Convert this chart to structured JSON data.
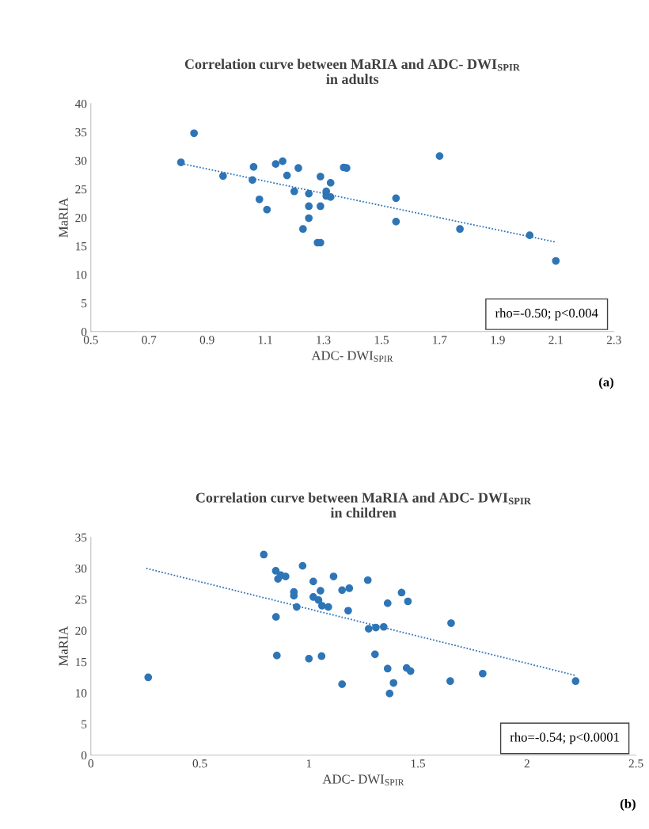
{
  "chart_data": [
    {
      "type": "scatter",
      "title": "Correlation curve between MaRIA and ADC- DWI$_{SPIR}$\nin adults",
      "xlabel": "ADC- DWI$_{SPIR}$",
      "ylabel": "MaRIA",
      "xlim": [
        0.5,
        2.3
      ],
      "xticks": [
        0.5,
        0.7,
        0.9,
        1.1,
        1.3,
        1.5,
        1.7,
        1.9,
        2.1,
        2.3
      ],
      "ylim": [
        0,
        40
      ],
      "yticks": [
        0,
        5,
        10,
        15,
        20,
        25,
        30,
        35,
        40
      ],
      "grid": false,
      "legend": false,
      "marker": "circle",
      "series": [
        {
          "color": "#2e75b6",
          "x": [
            0.81,
            0.855,
            1.7,
            0.955,
            1.06,
            1.056,
            1.08,
            1.106,
            1.136,
            1.16,
            1.175,
            1.214,
            1.2,
            1.25,
            1.25,
            1.25,
            1.23,
            1.29,
            1.29,
            1.28,
            1.29,
            1.31,
            1.31,
            1.325,
            1.325,
            1.37,
            1.38,
            1.55,
            1.55,
            1.77,
            2.01,
            2.1
          ],
          "values": [
            29.7,
            34.8,
            30.8,
            27.3,
            28.9,
            26.6,
            23.2,
            21.4,
            29.4,
            29.9,
            27.4,
            28.7,
            24.6,
            24.2,
            22.0,
            19.9,
            18.0,
            27.2,
            22.0,
            15.6,
            15.6,
            24.6,
            23.8,
            26.1,
            23.6,
            28.8,
            28.7,
            23.4,
            19.3,
            18.0,
            16.9,
            12.4
          ]
        },
        {
          "type": "line",
          "color": "#2e75b6",
          "line_style": "dotted",
          "marker": "none",
          "x": [
            0.81,
            2.1
          ],
          "values": [
            29.5,
            15.7
          ]
        }
      ],
      "annotations": [
        "rho=-0.50; p<0.004",
        "(a)"
      ]
    },
    {
      "type": "scatter",
      "title": "Correlation curve between MaRIA and ADC- DWI$_{SPIR}$\nin children",
      "xlabel": "ADC- DWI$_{SPIR}$",
      "ylabel": "MaRIA",
      "xlim": [
        0,
        2.5
      ],
      "xticks": [
        0,
        0.5,
        1,
        1.5,
        2,
        2.5
      ],
      "ylim": [
        0,
        35
      ],
      "yticks": [
        0,
        5,
        10,
        15,
        20,
        25,
        30,
        35
      ],
      "grid": false,
      "legend": false,
      "marker": "circle",
      "series": [
        {
          "color": "#2e75b6",
          "x": [
            0.263,
            0.793,
            0.848,
            0.858,
            0.871,
            0.893,
            0.849,
            0.853,
            0.931,
            0.931,
            0.944,
            0.971,
            1.02,
            1.02,
            1.0,
            1.053,
            1.044,
            1.06,
            1.089,
            1.058,
            1.113,
            1.152,
            1.185,
            1.18,
            1.152,
            1.27,
            1.274,
            1.307,
            1.343,
            1.303,
            1.361,
            1.361,
            1.388,
            1.37,
            1.425,
            1.454,
            1.448,
            1.466,
            1.652,
            1.648,
            1.797,
            2.223
          ],
          "values": [
            12.5,
            32.2,
            29.6,
            28.3,
            28.9,
            28.7,
            22.2,
            16.0,
            26.2,
            25.6,
            23.8,
            30.4,
            27.9,
            25.4,
            15.5,
            26.4,
            24.9,
            24.0,
            23.8,
            15.9,
            28.7,
            26.5,
            26.8,
            23.2,
            11.4,
            28.1,
            20.3,
            20.5,
            20.6,
            16.2,
            24.4,
            13.9,
            11.6,
            9.9,
            26.1,
            24.7,
            14.0,
            13.5,
            21.2,
            11.9,
            13.1,
            11.9
          ]
        },
        {
          "type": "line",
          "color": "#2e75b6",
          "line_style": "dotted",
          "marker": "none",
          "x": [
            0.254,
            2.223
          ],
          "values": [
            30.0,
            12.8
          ]
        }
      ],
      "annotations": [
        "rho=-0.54; p<0.0001",
        "(b)"
      ]
    }
  ]
}
